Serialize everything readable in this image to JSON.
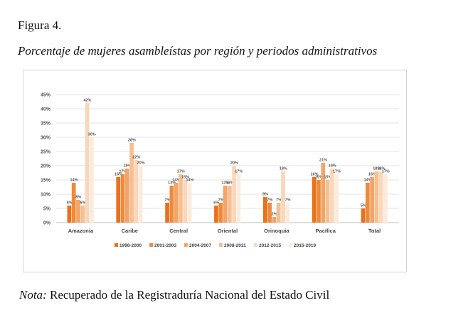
{
  "figure": {
    "label": "Figura 4.",
    "title": "Porcentaje de mujeres asambleístas por región y periodos administrativos"
  },
  "note": {
    "label": "Nota:",
    "text": " Recuperado de la Registraduría Nacional del Estado Civil"
  },
  "chart_data": {
    "type": "bar",
    "categories": [
      "Amazonia",
      "Caribe",
      "Central",
      "Oriental",
      "Orinoquia",
      "Pacífica",
      "Total"
    ],
    "y_ticks": [
      "0%",
      "5%",
      "10%",
      "15%",
      "20%",
      "25%",
      "30%",
      "35%",
      "40%",
      "45%"
    ],
    "ylim": [
      0,
      45
    ],
    "grid": true,
    "legend_position": "bottom",
    "series": [
      {
        "name": "1998-2000",
        "color": "#e8711a",
        "values": [
          6,
          16,
          7,
          6,
          9,
          16,
          5
        ],
        "labels": [
          "6%",
          "16%",
          "7%",
          "6%",
          "9%",
          "16%",
          "5%"
        ]
      },
      {
        "name": "2001-2003",
        "color": "#ee8a3c",
        "values": [
          14,
          17,
          13,
          7,
          7,
          15,
          14
        ],
        "labels": [
          "14%",
          "17%",
          "13%",
          "7%",
          "7%",
          "15%",
          "14%"
        ]
      },
      {
        "name": "2004-2007",
        "color": "#f3a466",
        "values": [
          8,
          19,
          14,
          13,
          2,
          21,
          16
        ],
        "labels": [
          "8%",
          "19%",
          "14%",
          "13%",
          "2%",
          "21%",
          "16%"
        ]
      },
      {
        "name": "2008-2011",
        "color": "#f7bf92",
        "values": [
          6,
          28,
          17,
          13,
          7,
          15,
          18
        ],
        "labels": [
          "6%",
          "28%",
          "17%",
          "13%",
          "7%",
          "15%",
          "18%"
        ]
      },
      {
        "name": "2012-2015",
        "color": "#fad7ba",
        "values": [
          42,
          22,
          15,
          20,
          18,
          19,
          18
        ],
        "labels": [
          "42%",
          "22%",
          "15%",
          "20%",
          "18%",
          "19%",
          "18%"
        ]
      },
      {
        "name": "2016-2019",
        "color": "#fcebdc",
        "values": [
          30,
          20,
          14,
          17,
          7,
          17,
          17
        ],
        "labels": [
          "30%",
          "20%",
          "14%",
          "17%",
          "7%",
          "17%",
          "17%"
        ]
      }
    ]
  }
}
